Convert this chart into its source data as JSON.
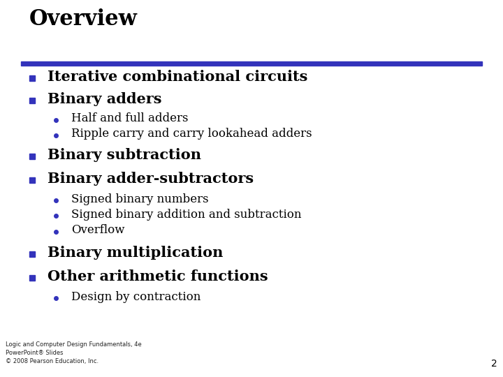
{
  "title": "Overview",
  "background_color": "#ffffff",
  "rule_color": "#3333bb",
  "bullet1_color": "#3333bb",
  "bullet2_color": "#3333bb",
  "text_color": "#000000",
  "title_fontsize": 22,
  "level1_fontsize": 15,
  "level2_fontsize": 12,
  "footer_fontsize": 6,
  "page_num_fontsize": 10,
  "items": [
    {
      "level": 1,
      "text": "Iterative combinational circuits"
    },
    {
      "level": 1,
      "text": "Binary adders"
    },
    {
      "level": 2,
      "text": "Half and full adders"
    },
    {
      "level": 2,
      "text": "Ripple carry and carry lookahead adders"
    },
    {
      "level": 1,
      "text": "Binary subtraction"
    },
    {
      "level": 1,
      "text": "Binary adder-subtractors"
    },
    {
      "level": 2,
      "text": "Signed binary numbers"
    },
    {
      "level": 2,
      "text": "Signed binary addition and subtraction"
    },
    {
      "level": 2,
      "text": "Overflow"
    },
    {
      "level": 1,
      "text": "Binary multiplication"
    },
    {
      "level": 1,
      "text": "Other arithmetic functions"
    },
    {
      "level": 2,
      "text": "Design by contraction"
    }
  ],
  "footer_lines": [
    "Logic and Computer Design Fundamentals, 4e",
    "PowerPoint® Slides",
    "© 2008 Pearson Education, Inc."
  ],
  "page_number": "2"
}
